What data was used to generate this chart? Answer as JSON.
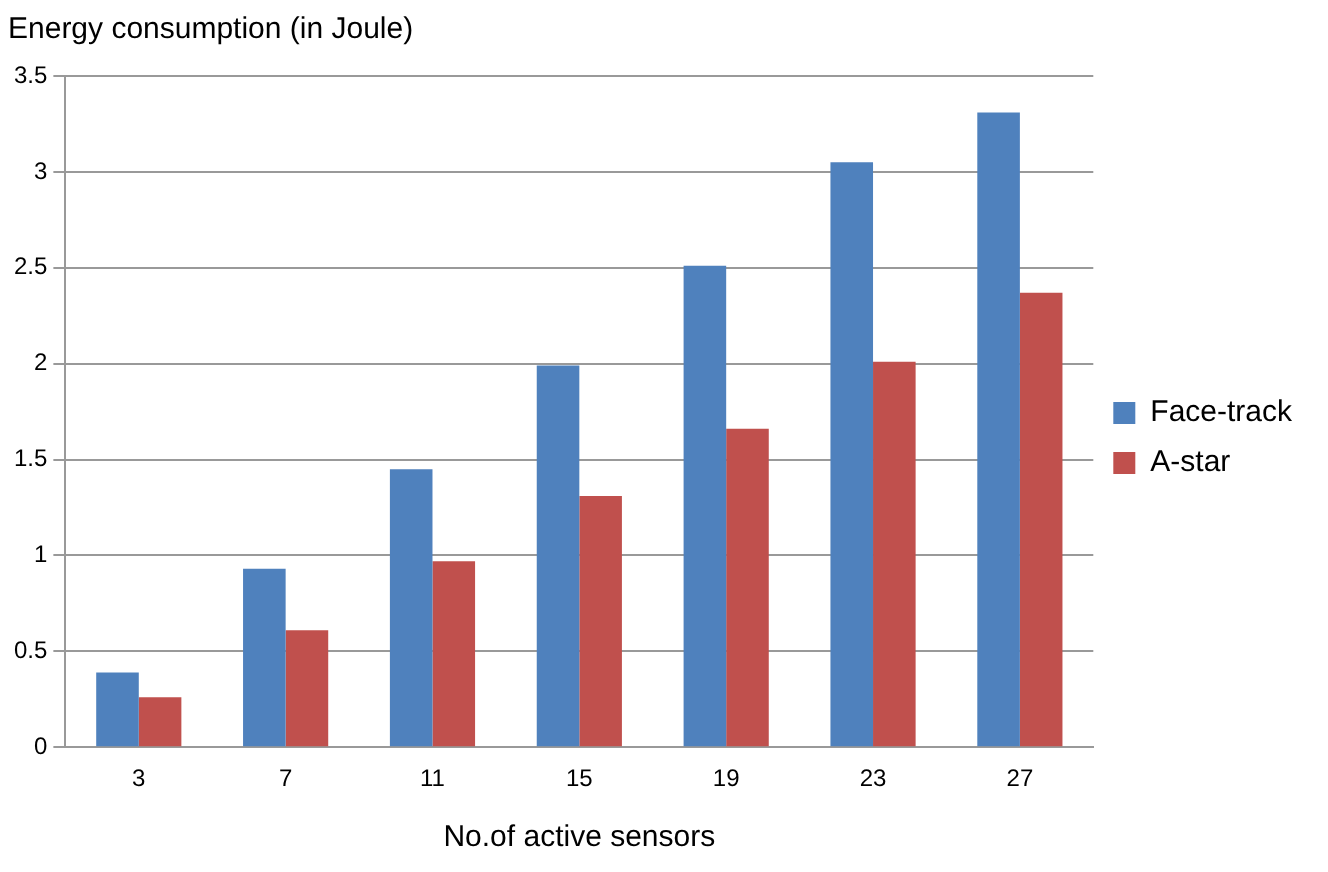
{
  "chart_data": {
    "type": "bar",
    "ylabel": "Energy consumption (in Joule)",
    "xlabel": "No.of active sensors",
    "categories": [
      "3",
      "7",
      "11",
      "15",
      "19",
      "23",
      "27"
    ],
    "series": [
      {
        "name": "Face-track",
        "color": "#4f81bd",
        "values": [
          0.39,
          0.93,
          1.45,
          1.99,
          2.51,
          3.05,
          3.31
        ]
      },
      {
        "name": "A-star",
        "color": "#c0504d",
        "values": [
          0.26,
          0.61,
          0.97,
          1.31,
          1.66,
          2.01,
          2.37
        ]
      }
    ],
    "ylim": [
      0,
      3.5
    ],
    "yticks": [
      0,
      0.5,
      1,
      1.5,
      2,
      2.5,
      3,
      3.5
    ],
    "grid": "y",
    "legend": "right"
  }
}
